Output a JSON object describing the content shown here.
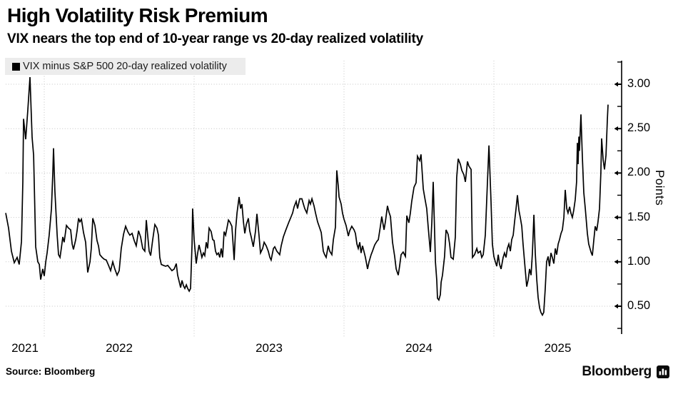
{
  "header": {
    "title": "High Volatility Risk Premium",
    "subtitle": "VIX nears the top end of 10-year range vs 20-day realized volatility"
  },
  "legend": {
    "label": "VIX minus S&P 500 20-day realized volatility"
  },
  "footer": {
    "source": "Source: Bloomberg",
    "brand": "Bloomberg"
  },
  "chart_data": {
    "type": "line",
    "title": "High Volatility Risk Premium",
    "subtitle": "VIX nears the top end of 10-year range vs 20-day realized volatility",
    "series_name": "VIX minus S&P 500 20-day realized volatility",
    "line_color": "#000000",
    "grid_color": "#c4c4c4",
    "legend_bg": "#ececec",
    "x_axis": {
      "tick_labels": [
        "2021",
        "2022",
        "2023",
        "2024",
        "2025"
      ],
      "tick_years": [
        2021,
        2022,
        2023,
        2024,
        2025
      ],
      "gridline_years": [
        2022,
        2023,
        2024,
        2025
      ],
      "range": [
        2021.74,
        2025.79
      ]
    },
    "y_axis": {
      "label": "Points",
      "tick_labels": [
        "0.50",
        "1.00",
        "1.50",
        "2.00",
        "2.50",
        "3.00"
      ],
      "tick_values": [
        0.5,
        1.0,
        1.5,
        2.0,
        2.5,
        3.0
      ],
      "minor_tick_values": [
        0.25,
        0.75,
        1.25,
        1.75,
        2.25,
        2.75,
        3.25
      ],
      "range": [
        0.22,
        3.27
      ],
      "side": "right"
    },
    "points": [
      [
        2021.743,
        1.55
      ],
      [
        2021.762,
        1.38
      ],
      [
        2021.781,
        1.12
      ],
      [
        2021.8,
        0.99
      ],
      [
        2021.819,
        1.05
      ],
      [
        2021.833,
        0.97
      ],
      [
        2021.848,
        1.23
      ],
      [
        2021.857,
        1.9
      ],
      [
        2021.862,
        2.61
      ],
      [
        2021.876,
        2.38
      ],
      [
        2021.89,
        2.7
      ],
      [
        2021.905,
        3.08
      ],
      [
        2021.919,
        2.4
      ],
      [
        2021.929,
        2.2
      ],
      [
        2021.943,
        1.17
      ],
      [
        2021.957,
        1.0
      ],
      [
        2021.967,
        0.97
      ],
      [
        2021.976,
        0.8
      ],
      [
        2021.99,
        0.92
      ],
      [
        2022.0,
        0.84
      ],
      [
        2022.01,
        1.0
      ],
      [
        2022.019,
        1.1
      ],
      [
        2022.033,
        1.3
      ],
      [
        2022.048,
        1.6
      ],
      [
        2022.057,
        2.0
      ],
      [
        2022.062,
        2.28
      ],
      [
        2022.071,
        1.8
      ],
      [
        2022.086,
        1.3
      ],
      [
        2022.095,
        1.08
      ],
      [
        2022.105,
        1.05
      ],
      [
        2022.114,
        1.15
      ],
      [
        2022.124,
        1.28
      ],
      [
        2022.133,
        1.22
      ],
      [
        2022.148,
        1.41
      ],
      [
        2022.162,
        1.38
      ],
      [
        2022.176,
        1.36
      ],
      [
        2022.186,
        1.2
      ],
      [
        2022.195,
        1.14
      ],
      [
        2022.21,
        1.25
      ],
      [
        2022.219,
        1.35
      ],
      [
        2022.229,
        1.49
      ],
      [
        2022.238,
        1.45
      ],
      [
        2022.248,
        1.48
      ],
      [
        2022.262,
        1.33
      ],
      [
        2022.276,
        1.22
      ],
      [
        2022.29,
        0.88
      ],
      [
        2022.305,
        1.0
      ],
      [
        2022.314,
        1.15
      ],
      [
        2022.324,
        1.49
      ],
      [
        2022.338,
        1.41
      ],
      [
        2022.352,
        1.24
      ],
      [
        2022.362,
        1.18
      ],
      [
        2022.371,
        1.08
      ],
      [
        2022.386,
        1.05
      ],
      [
        2022.4,
        1.03
      ],
      [
        2022.414,
        1.02
      ],
      [
        2022.429,
        0.96
      ],
      [
        2022.443,
        0.9
      ],
      [
        2022.457,
        1.0
      ],
      [
        2022.471,
        0.92
      ],
      [
        2022.486,
        0.85
      ],
      [
        2022.5,
        0.9
      ],
      [
        2022.514,
        1.15
      ],
      [
        2022.529,
        1.31
      ],
      [
        2022.543,
        1.4
      ],
      [
        2022.557,
        1.34
      ],
      [
        2022.571,
        1.3
      ],
      [
        2022.586,
        1.32
      ],
      [
        2022.6,
        1.24
      ],
      [
        2022.614,
        1.18
      ],
      [
        2022.629,
        1.35
      ],
      [
        2022.643,
        1.28
      ],
      [
        2022.657,
        1.15
      ],
      [
        2022.671,
        1.12
      ],
      [
        2022.681,
        1.47
      ],
      [
        2022.69,
        1.3
      ],
      [
        2022.7,
        1.12
      ],
      [
        2022.71,
        1.07
      ],
      [
        2022.724,
        1.25
      ],
      [
        2022.738,
        1.42
      ],
      [
        2022.752,
        1.38
      ],
      [
        2022.762,
        1.3
      ],
      [
        2022.771,
        1.05
      ],
      [
        2022.781,
        0.97
      ],
      [
        2022.795,
        0.96
      ],
      [
        2022.81,
        0.95
      ],
      [
        2022.824,
        0.96
      ],
      [
        2022.838,
        0.93
      ],
      [
        2022.852,
        0.9
      ],
      [
        2022.867,
        0.92
      ],
      [
        2022.881,
        0.98
      ],
      [
        2022.89,
        0.85
      ],
      [
        2022.9,
        0.78
      ],
      [
        2022.91,
        0.71
      ],
      [
        2022.919,
        0.79
      ],
      [
        2022.929,
        0.73
      ],
      [
        2022.938,
        0.7
      ],
      [
        2022.948,
        0.74
      ],
      [
        2022.957,
        0.7
      ],
      [
        2022.967,
        0.67
      ],
      [
        2022.976,
        0.7
      ],
      [
        2022.986,
        1.2
      ],
      [
        2022.99,
        1.6
      ],
      [
        2023.0,
        1.25
      ],
      [
        2023.01,
        1.06
      ],
      [
        2023.014,
        0.98
      ],
      [
        2023.024,
        1.1
      ],
      [
        2023.033,
        1.19
      ],
      [
        2023.043,
        1.12
      ],
      [
        2023.052,
        1.05
      ],
      [
        2023.062,
        1.1
      ],
      [
        2023.071,
        1.07
      ],
      [
        2023.081,
        1.22
      ],
      [
        2023.09,
        1.15
      ],
      [
        2023.1,
        1.38
      ],
      [
        2023.114,
        1.34
      ],
      [
        2023.124,
        1.25
      ],
      [
        2023.133,
        1.24
      ],
      [
        2023.143,
        1.12
      ],
      [
        2023.152,
        1.08
      ],
      [
        2023.162,
        1.1
      ],
      [
        2023.171,
        1.05
      ],
      [
        2023.181,
        1.15
      ],
      [
        2023.19,
        1.05
      ],
      [
        2023.2,
        1.34
      ],
      [
        2023.21,
        1.3
      ],
      [
        2023.219,
        1.38
      ],
      [
        2023.229,
        1.47
      ],
      [
        2023.238,
        1.45
      ],
      [
        2023.252,
        1.4
      ],
      [
        2023.267,
        1.02
      ],
      [
        2023.276,
        1.35
      ],
      [
        2023.286,
        1.55
      ],
      [
        2023.3,
        1.73
      ],
      [
        2023.31,
        1.6
      ],
      [
        2023.319,
        1.65
      ],
      [
        2023.329,
        1.45
      ],
      [
        2023.338,
        1.32
      ],
      [
        2023.348,
        1.42
      ],
      [
        2023.362,
        1.49
      ],
      [
        2023.371,
        1.35
      ],
      [
        2023.381,
        1.28
      ],
      [
        2023.395,
        1.17
      ],
      [
        2023.41,
        1.35
      ],
      [
        2023.419,
        1.54
      ],
      [
        2023.433,
        1.3
      ],
      [
        2023.443,
        1.1
      ],
      [
        2023.457,
        1.15
      ],
      [
        2023.467,
        1.22
      ],
      [
        2023.481,
        1.18
      ],
      [
        2023.495,
        1.12
      ],
      [
        2023.505,
        1.05
      ],
      [
        2023.514,
        1.02
      ],
      [
        2023.529,
        1.15
      ],
      [
        2023.538,
        1.17
      ],
      [
        2023.552,
        1.12
      ],
      [
        2023.562,
        1.1
      ],
      [
        2023.571,
        1.08
      ],
      [
        2023.581,
        1.18
      ],
      [
        2023.595,
        1.28
      ],
      [
        2023.61,
        1.35
      ],
      [
        2023.619,
        1.39
      ],
      [
        2023.633,
        1.45
      ],
      [
        2023.643,
        1.49
      ],
      [
        2023.657,
        1.55
      ],
      [
        2023.667,
        1.62
      ],
      [
        2023.681,
        1.68
      ],
      [
        2023.69,
        1.6
      ],
      [
        2023.705,
        1.71
      ],
      [
        2023.719,
        1.71
      ],
      [
        2023.729,
        1.65
      ],
      [
        2023.738,
        1.6
      ],
      [
        2023.752,
        1.55
      ],
      [
        2023.767,
        1.69
      ],
      [
        2023.776,
        1.65
      ],
      [
        2023.786,
        1.71
      ],
      [
        2023.8,
        1.63
      ],
      [
        2023.81,
        1.55
      ],
      [
        2023.824,
        1.45
      ],
      [
        2023.838,
        1.38
      ],
      [
        2023.848,
        1.33
      ],
      [
        2023.862,
        1.12
      ],
      [
        2023.871,
        1.08
      ],
      [
        2023.881,
        1.05
      ],
      [
        2023.895,
        1.18
      ],
      [
        2023.905,
        1.12
      ],
      [
        2023.919,
        1.08
      ],
      [
        2023.929,
        1.25
      ],
      [
        2023.943,
        1.39
      ],
      [
        2023.952,
        2.03
      ],
      [
        2023.962,
        1.85
      ],
      [
        2023.967,
        1.73
      ],
      [
        2023.981,
        1.65
      ],
      [
        2023.99,
        1.55
      ],
      [
        2024.0,
        1.48
      ],
      [
        2024.014,
        1.41
      ],
      [
        2024.029,
        1.29
      ],
      [
        2024.038,
        1.35
      ],
      [
        2024.052,
        1.4
      ],
      [
        2024.067,
        1.36
      ],
      [
        2024.076,
        1.32
      ],
      [
        2024.086,
        1.2
      ],
      [
        2024.095,
        1.15
      ],
      [
        2024.105,
        1.22
      ],
      [
        2024.114,
        1.1
      ],
      [
        2024.124,
        1.18
      ],
      [
        2024.133,
        1.12
      ],
      [
        2024.143,
        1.05
      ],
      [
        2024.157,
        0.92
      ],
      [
        2024.167,
        1.0
      ],
      [
        2024.181,
        1.08
      ],
      [
        2024.19,
        1.12
      ],
      [
        2024.205,
        1.19
      ],
      [
        2024.219,
        1.23
      ],
      [
        2024.229,
        1.25
      ],
      [
        2024.243,
        1.4
      ],
      [
        2024.252,
        1.51
      ],
      [
        2024.267,
        1.36
      ],
      [
        2024.276,
        1.45
      ],
      [
        2024.29,
        1.63
      ],
      [
        2024.3,
        1.56
      ],
      [
        2024.31,
        1.51
      ],
      [
        2024.324,
        1.22
      ],
      [
        2024.338,
        1.06
      ],
      [
        2024.348,
        0.92
      ],
      [
        2024.362,
        0.85
      ],
      [
        2024.371,
        0.95
      ],
      [
        2024.381,
        1.08
      ],
      [
        2024.395,
        1.11
      ],
      [
        2024.41,
        1.06
      ],
      [
        2024.419,
        1.52
      ],
      [
        2024.433,
        1.44
      ],
      [
        2024.443,
        1.55
      ],
      [
        2024.452,
        1.68
      ],
      [
        2024.467,
        1.84
      ],
      [
        2024.481,
        1.89
      ],
      [
        2024.49,
        2.19
      ],
      [
        2024.505,
        2.14
      ],
      [
        2024.514,
        2.21
      ],
      [
        2024.529,
        1.82
      ],
      [
        2024.538,
        1.73
      ],
      [
        2024.552,
        1.6
      ],
      [
        2024.562,
        1.39
      ],
      [
        2024.576,
        1.11
      ],
      [
        2024.586,
        1.45
      ],
      [
        2024.595,
        1.9
      ],
      [
        2024.605,
        1.3
      ],
      [
        2024.61,
        1.0
      ],
      [
        2024.619,
        0.79
      ],
      [
        2024.624,
        0.59
      ],
      [
        2024.633,
        0.57
      ],
      [
        2024.643,
        0.63
      ],
      [
        2024.648,
        0.77
      ],
      [
        2024.657,
        0.85
      ],
      [
        2024.671,
        1.06
      ],
      [
        2024.681,
        1.36
      ],
      [
        2024.695,
        1.31
      ],
      [
        2024.705,
        1.2
      ],
      [
        2024.714,
        1.05
      ],
      [
        2024.729,
        1.03
      ],
      [
        2024.743,
        1.28
      ],
      [
        2024.752,
        1.95
      ],
      [
        2024.762,
        2.16
      ],
      [
        2024.776,
        2.1
      ],
      [
        2024.786,
        2.03
      ],
      [
        2024.8,
        1.98
      ],
      [
        2024.81,
        1.9
      ],
      [
        2024.824,
        2.13
      ],
      [
        2024.833,
        2.08
      ],
      [
        2024.848,
        2.04
      ],
      [
        2024.857,
        1.05
      ],
      [
        2024.871,
        1.08
      ],
      [
        2024.886,
        1.15
      ],
      [
        2024.895,
        1.1
      ],
      [
        2024.91,
        1.12
      ],
      [
        2024.919,
        1.05
      ],
      [
        2024.929,
        1.08
      ],
      [
        2024.943,
        1.3
      ],
      [
        2024.952,
        1.68
      ],
      [
        2024.967,
        2.31
      ],
      [
        2024.981,
        1.68
      ],
      [
        2024.99,
        1.2
      ],
      [
        2025.0,
        1.06
      ],
      [
        2025.01,
        1.0
      ],
      [
        2025.019,
        0.95
      ],
      [
        2025.029,
        1.08
      ],
      [
        2025.038,
        0.97
      ],
      [
        2025.048,
        0.92
      ],
      [
        2025.062,
        1.05
      ],
      [
        2025.071,
        1.1
      ],
      [
        2025.081,
        1.05
      ],
      [
        2025.09,
        1.15
      ],
      [
        2025.1,
        1.2
      ],
      [
        2025.11,
        1.12
      ],
      [
        2025.119,
        1.25
      ],
      [
        2025.129,
        1.3
      ],
      [
        2025.138,
        1.45
      ],
      [
        2025.148,
        1.6
      ],
      [
        2025.157,
        1.75
      ],
      [
        2025.167,
        1.58
      ],
      [
        2025.176,
        1.5
      ],
      [
        2025.186,
        1.4
      ],
      [
        2025.195,
        1.2
      ],
      [
        2025.205,
        1.0
      ],
      [
        2025.219,
        0.72
      ],
      [
        2025.229,
        0.8
      ],
      [
        2025.238,
        0.92
      ],
      [
        2025.248,
        0.85
      ],
      [
        2025.257,
        1.1
      ],
      [
        2025.267,
        1.53
      ],
      [
        2025.276,
        1.1
      ],
      [
        2025.286,
        0.8
      ],
      [
        2025.295,
        0.6
      ],
      [
        2025.305,
        0.48
      ],
      [
        2025.314,
        0.43
      ],
      [
        2025.324,
        0.4
      ],
      [
        2025.333,
        0.43
      ],
      [
        2025.343,
        0.7
      ],
      [
        2025.352,
        1.0
      ],
      [
        2025.362,
        1.06
      ],
      [
        2025.371,
        0.95
      ],
      [
        2025.381,
        1.1
      ],
      [
        2025.39,
        1.05
      ],
      [
        2025.4,
        0.98
      ],
      [
        2025.41,
        1.15
      ],
      [
        2025.419,
        1.08
      ],
      [
        2025.429,
        1.2
      ],
      [
        2025.438,
        1.25
      ],
      [
        2025.448,
        1.32
      ],
      [
        2025.457,
        1.36
      ],
      [
        2025.467,
        1.5
      ],
      [
        2025.476,
        1.81
      ],
      [
        2025.486,
        1.6
      ],
      [
        2025.495,
        1.55
      ],
      [
        2025.505,
        1.62
      ],
      [
        2025.514,
        1.55
      ],
      [
        2025.524,
        1.5
      ],
      [
        2025.533,
        1.58
      ],
      [
        2025.543,
        1.7
      ],
      [
        2025.552,
        1.9
      ],
      [
        2025.557,
        2.34
      ],
      [
        2025.562,
        2.1
      ],
      [
        2025.567,
        2.41
      ],
      [
        2025.571,
        2.25
      ],
      [
        2025.581,
        2.66
      ],
      [
        2025.59,
        2.2
      ],
      [
        2025.6,
        1.78
      ],
      [
        2025.61,
        1.6
      ],
      [
        2025.624,
        1.32
      ],
      [
        2025.633,
        1.2
      ],
      [
        2025.648,
        1.11
      ],
      [
        2025.657,
        1.07
      ],
      [
        2025.667,
        1.25
      ],
      [
        2025.676,
        1.4
      ],
      [
        2025.686,
        1.35
      ],
      [
        2025.695,
        1.45
      ],
      [
        2025.705,
        1.6
      ],
      [
        2025.714,
        2.0
      ],
      [
        2025.719,
        2.39
      ],
      [
        2025.729,
        2.15
      ],
      [
        2025.738,
        2.04
      ],
      [
        2025.748,
        2.2
      ],
      [
        2025.757,
        2.6
      ],
      [
        2025.762,
        2.77
      ]
    ]
  }
}
